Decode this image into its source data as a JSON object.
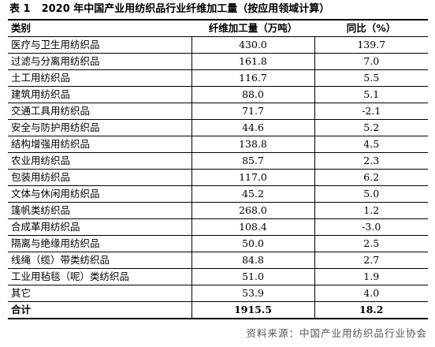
{
  "caption": {
    "number": "表 1",
    "title": "2020 年中国产业用纺织品行业纤维加工量（按应用领域计算）"
  },
  "table": {
    "headers": {
      "category": "类别",
      "volume": "纤维加工量（万吨）",
      "yoy": "同比（%）"
    },
    "rows": [
      {
        "name": "医疗与卫生用纺织品",
        "volume": "430.0",
        "yoy": "139.7"
      },
      {
        "name": "过滤与分离用纺织品",
        "volume": "161.8",
        "yoy": "7.0"
      },
      {
        "name": "土工用纺织品",
        "volume": "116.7",
        "yoy": "5.5"
      },
      {
        "name": "建筑用纺织品",
        "volume": "88.0",
        "yoy": "5.1"
      },
      {
        "name": "交通工具用纺织品",
        "volume": "71.7",
        "yoy": "-2.1"
      },
      {
        "name": "安全与防护用纺织品",
        "volume": "44.6",
        "yoy": "5.2"
      },
      {
        "name": "结构增强用纺织品",
        "volume": "138.8",
        "yoy": "4.5"
      },
      {
        "name": "农业用纺织品",
        "volume": "85.7",
        "yoy": "2.3"
      },
      {
        "name": "包装用纺织品",
        "volume": "117.0",
        "yoy": "6.2"
      },
      {
        "name": "文体与休闲用纺织品",
        "volume": "45.2",
        "yoy": "5.0"
      },
      {
        "name": "篷帆类纺织品",
        "volume": "268.0",
        "yoy": "1.2"
      },
      {
        "name": "合成革用纺织品",
        "volume": "108.4",
        "yoy": "-3.0"
      },
      {
        "name": "隔离与绝缘用纺织品",
        "volume": "50.0",
        "yoy": "2.5"
      },
      {
        "name": "线绳（缆）带类纺织品",
        "volume": "84.8",
        "yoy": "2.7"
      },
      {
        "name": "工业用毡毯（呢）类纺织品",
        "volume": "51.0",
        "yoy": "1.9"
      },
      {
        "name": "其它",
        "volume": "53.9",
        "yoy": "4.0"
      }
    ],
    "total": {
      "name": "合计",
      "volume": "1915.5",
      "yoy": "18.2"
    }
  },
  "source": "资料来源：中国产业用纺织品行业协会"
}
